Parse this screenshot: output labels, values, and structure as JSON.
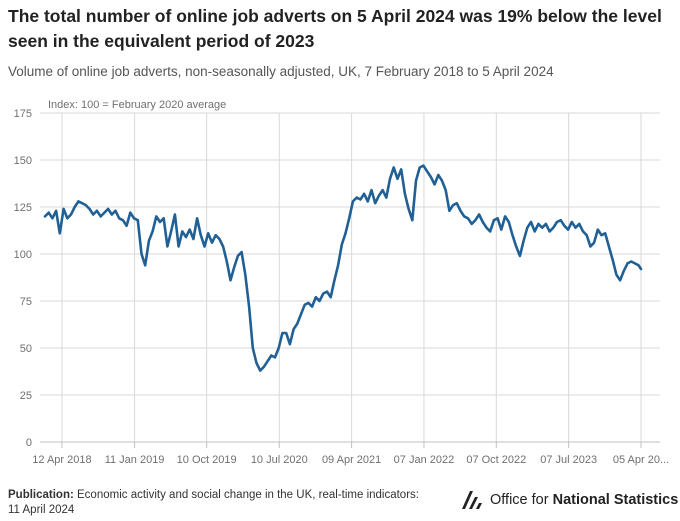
{
  "title": "The total number of online job adverts on 5 April 2024 was 19% below the level seen in the equivalent period of 2023",
  "subtitle": "Volume of online job adverts, non-seasonally adjusted, UK, 7 February 2018 to 5 April 2024",
  "footer": {
    "publication_label": "Publication:",
    "publication_text": "Economic activity and social change in the UK, real-time indicators:",
    "publication_date": "11 April 2024"
  },
  "logo": {
    "text_regular": "Office for",
    "text_bold": "National Statistics",
    "icon": "ons-logo-icon"
  },
  "colors": {
    "line": "#206095",
    "grid": "#d9d9d9",
    "axis": "#bfbfbf",
    "text": "#707070"
  },
  "chart_data": {
    "type": "line",
    "ylabel": "Index: 100 = February 2020 average",
    "ylim": [
      0,
      175
    ],
    "yticks": [
      0,
      25,
      50,
      75,
      100,
      125,
      150,
      175
    ],
    "x_tick_labels": [
      "12 Apr 2018",
      "11 Jan 2019",
      "10 Oct 2019",
      "10 Jul 2020",
      "09 Apr 2021",
      "07 Jan 2022",
      "07 Oct 2022",
      "07 Jul 2023",
      "05 Apr 20..."
    ],
    "x_tick_dates": [
      "2018-04-12",
      "2019-01-11",
      "2019-10-10",
      "2020-07-10",
      "2021-04-09",
      "2022-01-07",
      "2022-10-07",
      "2023-07-07",
      "2024-04-05"
    ],
    "grid": true,
    "series": [
      {
        "x": [
          "2018-02-07",
          "2018-02-21",
          "2018-03-07",
          "2018-03-21",
          "2018-04-04",
          "2018-04-18",
          "2018-05-02",
          "2018-05-16",
          "2018-05-30",
          "2018-06-13",
          "2018-06-27",
          "2018-07-11",
          "2018-07-25",
          "2018-08-08",
          "2018-08-22",
          "2018-09-05",
          "2018-09-19",
          "2018-10-03",
          "2018-10-17",
          "2018-10-31",
          "2018-11-14",
          "2018-11-28",
          "2018-12-12",
          "2018-12-26",
          "2019-01-09",
          "2019-01-23",
          "2019-02-06",
          "2019-02-20",
          "2019-03-06",
          "2019-03-20",
          "2019-04-03",
          "2019-04-17",
          "2019-05-01",
          "2019-05-15",
          "2019-05-29",
          "2019-06-12",
          "2019-06-26",
          "2019-07-10",
          "2019-07-24",
          "2019-08-07",
          "2019-08-21",
          "2019-09-04",
          "2019-09-18",
          "2019-10-02",
          "2019-10-16",
          "2019-10-30",
          "2019-11-13",
          "2019-11-27",
          "2019-12-11",
          "2019-12-25",
          "2020-01-08",
          "2020-01-22",
          "2020-02-05",
          "2020-02-19",
          "2020-03-04",
          "2020-03-18",
          "2020-04-01",
          "2020-04-15",
          "2020-04-29",
          "2020-05-13",
          "2020-05-27",
          "2020-06-10",
          "2020-06-24",
          "2020-07-08",
          "2020-07-22",
          "2020-08-05",
          "2020-08-19",
          "2020-09-02",
          "2020-09-16",
          "2020-09-30",
          "2020-10-14",
          "2020-10-28",
          "2020-11-11",
          "2020-11-25",
          "2020-12-09",
          "2020-12-23",
          "2021-01-06",
          "2021-01-20",
          "2021-02-03",
          "2021-02-17",
          "2021-03-03",
          "2021-03-17",
          "2021-03-31",
          "2021-04-14",
          "2021-04-28",
          "2021-05-12",
          "2021-05-26",
          "2021-06-09",
          "2021-06-23",
          "2021-07-07",
          "2021-07-21",
          "2021-08-04",
          "2021-08-18",
          "2021-09-01",
          "2021-09-15",
          "2021-09-29",
          "2021-10-13",
          "2021-10-27",
          "2021-11-10",
          "2021-11-24",
          "2021-12-08",
          "2021-12-22",
          "2022-01-05",
          "2022-01-19",
          "2022-02-02",
          "2022-02-16",
          "2022-03-02",
          "2022-03-16",
          "2022-03-30",
          "2022-04-13",
          "2022-04-27",
          "2022-05-11",
          "2022-05-25",
          "2022-06-08",
          "2022-06-22",
          "2022-07-06",
          "2022-07-20",
          "2022-08-03",
          "2022-08-17",
          "2022-08-31",
          "2022-09-14",
          "2022-09-28",
          "2022-10-12",
          "2022-10-26",
          "2022-11-09",
          "2022-11-23",
          "2022-12-07",
          "2022-12-21",
          "2023-01-04",
          "2023-01-18",
          "2023-02-01",
          "2023-02-15",
          "2023-03-01",
          "2023-03-15",
          "2023-03-29",
          "2023-04-12",
          "2023-04-26",
          "2023-05-10",
          "2023-05-24",
          "2023-06-07",
          "2023-06-21",
          "2023-07-05",
          "2023-07-19",
          "2023-08-02",
          "2023-08-16",
          "2023-08-30",
          "2023-09-13",
          "2023-09-27",
          "2023-10-11",
          "2023-10-25",
          "2023-11-08",
          "2023-11-22",
          "2023-12-06",
          "2023-12-20",
          "2024-01-03",
          "2024-01-17",
          "2024-01-31",
          "2024-02-14",
          "2024-02-28",
          "2024-03-13",
          "2024-03-27",
          "2024-04-05"
        ],
        "values": [
          120,
          122,
          119,
          123,
          111,
          124,
          119,
          121,
          125,
          128,
          127,
          126,
          124,
          121,
          123,
          120,
          122,
          124,
          121,
          123,
          119,
          118,
          115,
          122,
          119,
          118,
          100,
          94,
          107,
          112,
          120,
          117,
          119,
          104,
          112,
          121,
          104,
          112,
          109,
          113,
          108,
          119,
          110,
          104,
          111,
          106,
          110,
          108,
          104,
          96,
          86,
          93,
          99,
          101,
          89,
          72,
          50,
          42,
          38,
          40,
          43,
          46,
          45,
          50,
          58,
          58,
          52,
          60,
          63,
          68,
          73,
          74,
          72,
          77,
          75,
          79,
          80,
          77,
          86,
          94,
          105,
          111,
          119,
          128,
          130,
          129,
          132,
          128,
          134,
          127,
          131,
          134,
          130,
          140,
          146,
          140,
          145,
          132,
          124,
          118,
          139,
          146,
          147,
          144,
          141,
          137,
          142,
          139,
          134,
          123,
          126,
          127,
          123,
          120,
          119,
          116,
          118,
          121,
          117,
          114,
          112,
          118,
          119,
          113,
          120,
          117,
          110,
          104,
          99,
          107,
          114,
          117,
          112,
          116,
          114,
          116,
          112,
          114,
          117,
          118,
          115,
          113,
          117,
          114,
          116,
          112,
          110,
          104,
          106,
          113,
          110,
          111,
          104,
          97,
          89,
          86,
          91,
          95,
          96,
          95,
          94,
          92
        ]
      }
    ]
  }
}
